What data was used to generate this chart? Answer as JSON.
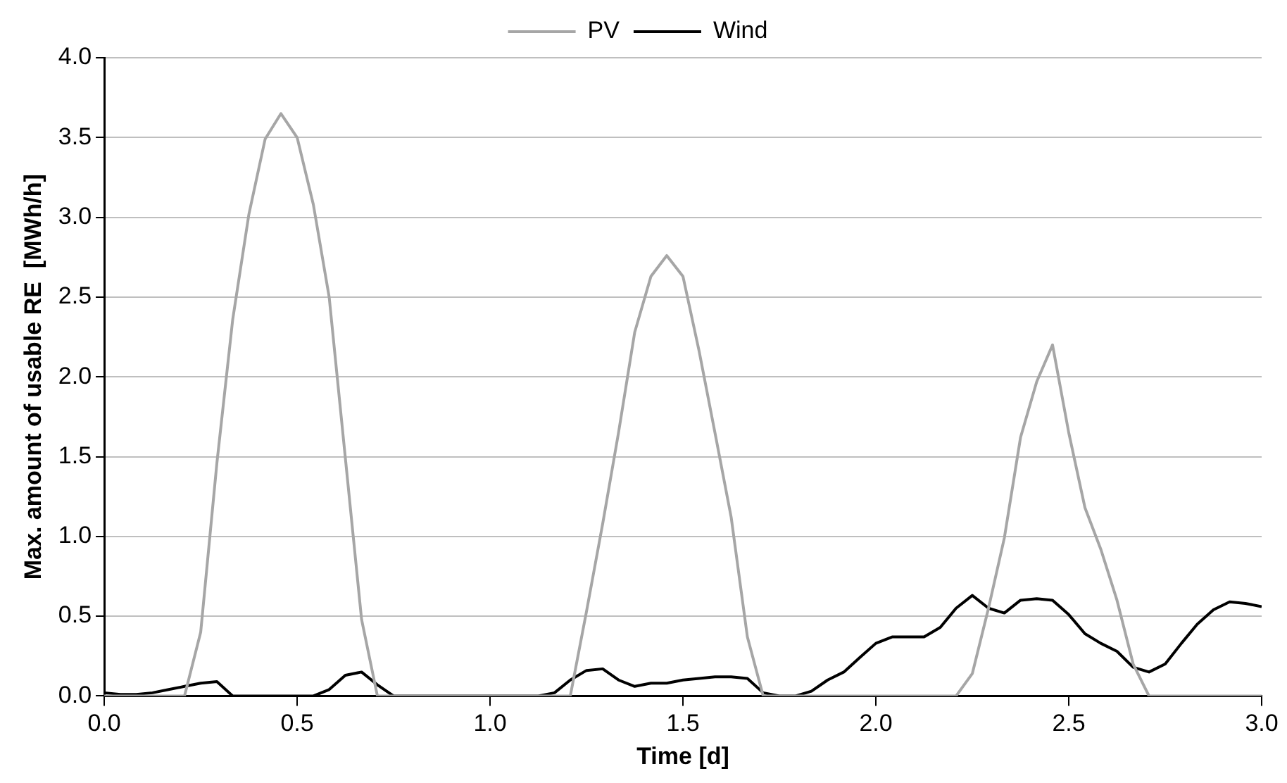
{
  "chart_data": {
    "type": "line",
    "xlabel": "Time [d]",
    "ylabel": "Max. amount of usable RE  [MWh/h]",
    "x": [
      0,
      0.042,
      0.083,
      0.125,
      0.167,
      0.208,
      0.25,
      0.292,
      0.333,
      0.375,
      0.417,
      0.458,
      0.5,
      0.542,
      0.583,
      0.625,
      0.667,
      0.708,
      0.75,
      0.792,
      0.833,
      0.875,
      0.917,
      0.958,
      1,
      1.042,
      1.083,
      1.125,
      1.167,
      1.208,
      1.25,
      1.292,
      1.333,
      1.375,
      1.417,
      1.458,
      1.5,
      1.542,
      1.583,
      1.625,
      1.667,
      1.708,
      1.75,
      1.792,
      1.833,
      1.875,
      1.917,
      1.958,
      2,
      2.042,
      2.083,
      2.125,
      2.167,
      2.208,
      2.25,
      2.292,
      2.333,
      2.375,
      2.417,
      2.458,
      2.5,
      2.542,
      2.583,
      2.625,
      2.667,
      2.708,
      2.75,
      2.792,
      2.833,
      2.875,
      2.917,
      2.958,
      3
    ],
    "series": [
      {
        "name": "PV",
        "color": "#a6a6a6",
        "values": [
          0,
          0,
          0,
          0,
          0,
          0,
          0.4,
          1.46,
          2.36,
          3.02,
          3.49,
          3.65,
          3.5,
          3.08,
          2.5,
          1.49,
          0.48,
          0,
          0,
          0,
          0,
          0,
          0,
          0,
          0,
          0,
          0,
          0,
          0,
          0,
          0.53,
          1.08,
          1.65,
          2.28,
          2.63,
          2.76,
          2.63,
          2.16,
          1.65,
          1.12,
          0.37,
          0,
          0,
          0,
          0,
          0,
          0,
          0,
          0,
          0,
          0,
          0,
          0,
          0,
          0.14,
          0.55,
          0.99,
          1.62,
          1.97,
          2.2,
          1.65,
          1.18,
          0.92,
          0.6,
          0.2,
          0,
          0,
          0,
          0,
          0,
          0,
          0,
          0
        ]
      },
      {
        "name": "Wind",
        "color": "#000000",
        "values": [
          0.02,
          0.01,
          0.01,
          0.02,
          0.04,
          0.06,
          0.08,
          0.09,
          0,
          0,
          0,
          0,
          0,
          0,
          0.04,
          0.13,
          0.15,
          0.07,
          0,
          0,
          0,
          0,
          0,
          0,
          0,
          0,
          0,
          0,
          0.02,
          0.1,
          0.16,
          0.17,
          0.1,
          0.06,
          0.08,
          0.08,
          0.1,
          0.11,
          0.12,
          0.12,
          0.11,
          0.02,
          0,
          0,
          0.03,
          0.1,
          0.15,
          0.24,
          0.33,
          0.37,
          0.37,
          0.37,
          0.43,
          0.55,
          0.63,
          0.55,
          0.52,
          0.6,
          0.61,
          0.6,
          0.51,
          0.39,
          0.33,
          0.28,
          0.18,
          0.15,
          0.2,
          0.33,
          0.45,
          0.54,
          0.59,
          0.58,
          0.56
        ]
      }
    ],
    "xlim": [
      0,
      3
    ],
    "xticks": [
      {
        "value": 0,
        "label": "0.0"
      },
      {
        "value": 0.5,
        "label": "0.5"
      },
      {
        "value": 1,
        "label": "1.0"
      },
      {
        "value": 1.5,
        "label": "1.5"
      },
      {
        "value": 2,
        "label": "2.0"
      },
      {
        "value": 2.5,
        "label": "2.5"
      },
      {
        "value": 3,
        "label": "3.0"
      }
    ],
    "ylim": [
      0,
      4
    ],
    "yticks": [
      {
        "value": 0,
        "label": "0.0"
      },
      {
        "value": 0.5,
        "label": "0.5"
      },
      {
        "value": 1,
        "label": "1.0"
      },
      {
        "value": 1.5,
        "label": "1.5"
      },
      {
        "value": 2,
        "label": "2.0"
      },
      {
        "value": 2.5,
        "label": "2.5"
      },
      {
        "value": 3,
        "label": "3.0"
      },
      {
        "value": 3.5,
        "label": "3.5"
      },
      {
        "value": 4,
        "label": "4.0"
      }
    ],
    "grid": "y",
    "legend": "top",
    "marker": "none",
    "line_style": "solid"
  }
}
